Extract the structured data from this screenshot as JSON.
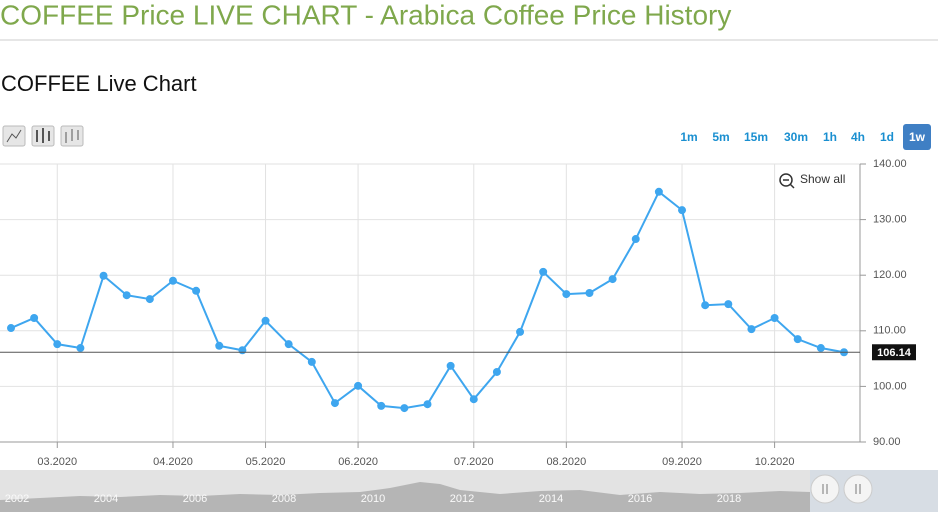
{
  "page": {
    "title": "COFFEE Price LIVE CHART - Arabica Coffee Price History",
    "heading": "COFFEE Live Chart"
  },
  "toolbar": {
    "ranges": [
      "1m",
      "5m",
      "15m",
      "30m",
      "1h",
      "4h",
      "1d",
      "1w"
    ],
    "active_index": 7,
    "reset_zoom": "Show all"
  },
  "chart_data": {
    "type": "line",
    "color": "#3ea6ef",
    "categories": [
      null,
      null,
      "03.2020",
      null,
      null,
      null,
      null,
      "04.2020",
      null,
      null,
      null,
      "05.2020",
      null,
      null,
      null,
      "06.2020",
      null,
      null,
      null,
      null,
      "07.2020",
      null,
      null,
      null,
      "08.2020",
      null,
      null,
      null,
      null,
      "09.2020",
      null,
      null,
      null,
      "10.2020",
      null,
      null,
      null
    ],
    "values": [
      110.5,
      112.3,
      107.6,
      106.9,
      119.9,
      116.4,
      115.7,
      119.0,
      117.2,
      107.3,
      106.5,
      111.8,
      107.6,
      104.4,
      97.0,
      100.1,
      96.5,
      96.1,
      96.8,
      103.7,
      97.7,
      102.6,
      109.8,
      120.6,
      116.6,
      116.8,
      119.3,
      126.5,
      135.0,
      131.7,
      114.6,
      114.8,
      110.3,
      112.3,
      108.5,
      106.9,
      106.14
    ],
    "ylim": [
      90,
      140
    ],
    "yticks": [
      {
        "value": 90,
        "label": "90.00"
      },
      {
        "value": 100,
        "label": "100.00"
      },
      {
        "value": 110,
        "label": "110.00"
      },
      {
        "value": 120,
        "label": "120.00"
      },
      {
        "value": 130,
        "label": "130.00"
      },
      {
        "value": 140,
        "label": "140.00"
      }
    ],
    "grid": true
  },
  "navigator": {
    "years": [
      "2002",
      "2004",
      "2006",
      "2008",
      "2010",
      "2012",
      "2014",
      "2016",
      "2018"
    ]
  }
}
